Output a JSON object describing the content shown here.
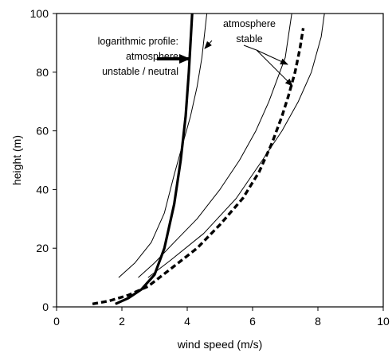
{
  "chart_data": {
    "type": "line",
    "xlabel": "wind speed (m/s)",
    "ylabel": "height (m)",
    "xlim": [
      0,
      10
    ],
    "ylim": [
      0,
      100
    ],
    "xticks": [
      0,
      2,
      4,
      6,
      8,
      10
    ],
    "yticks": [
      0,
      20,
      40,
      60,
      80,
      100
    ],
    "grid": false,
    "series": [
      {
        "style": "thick solid",
        "x": [
          1.8,
          2.2,
          2.6,
          3.0,
          3.3,
          3.6,
          3.8,
          3.95,
          4.05,
          4.15
        ],
        "y": [
          1,
          3,
          6,
          11,
          20,
          35,
          50,
          65,
          80,
          100
        ]
      },
      {
        "style": "thin solid",
        "x": [
          1.9,
          2.4,
          2.9,
          3.3,
          3.6,
          3.85,
          4.1,
          4.3,
          4.45,
          4.6
        ],
        "y": [
          10,
          15,
          22,
          32,
          45,
          55,
          65,
          75,
          85,
          100
        ]
      },
      {
        "style": "thin solid",
        "x": [
          2.5,
          3.0,
          3.6,
          4.3,
          5.0,
          5.6,
          6.1,
          6.5,
          7.0,
          7.2
        ],
        "y": [
          10,
          15,
          22,
          30,
          40,
          50,
          60,
          70,
          85,
          100
        ]
      },
      {
        "style": "thin solid",
        "x": [
          2.8,
          3.5,
          4.5,
          5.5,
          6.3,
          6.9,
          7.4,
          7.8,
          8.1,
          8.2
        ],
        "y": [
          10,
          16,
          25,
          37,
          50,
          60,
          70,
          80,
          92,
          100
        ]
      },
      {
        "style": "thick dashed",
        "x": [
          1.1,
          1.6,
          2.2,
          2.8,
          3.5,
          4.3,
          5.0,
          5.7,
          6.2,
          6.6,
          6.9,
          7.1,
          7.3,
          7.45,
          7.55
        ],
        "y": [
          1,
          2,
          4,
          7,
          13,
          20,
          28,
          37,
          46,
          56,
          65,
          72,
          80,
          88,
          95
        ]
      }
    ],
    "annotations": [
      {
        "lines": [
          "logarithmic profile:",
          "atmosphere",
          "unstable / neutral"
        ]
      },
      {
        "lines": [
          "atmosphere",
          "stable"
        ]
      }
    ]
  }
}
